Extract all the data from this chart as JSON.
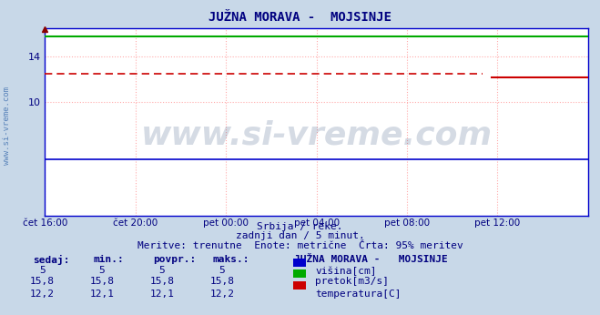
{
  "title": "JUŽNA MORAVA -  MOJSINJE",
  "title_color": "#000080",
  "title_fontsize": 10,
  "plot_bg_color": "#ffffff",
  "fig_bg_color": "#c8d8e8",
  "xmin": 0,
  "xmax": 288,
  "ymin": 0,
  "ymax": 16.5,
  "yticks": [
    10,
    14
  ],
  "xtick_positions": [
    0,
    48,
    96,
    144,
    192,
    240
  ],
  "xtick_labels": [
    "čet 16:00",
    "čet 20:00",
    "pet 00:00",
    "pet 04:00",
    "pet 08:00",
    "pet 12:00"
  ],
  "grid_color": "#ffaaaa",
  "axis_color": "#0000cc",
  "n_points": 289,
  "visina_value": 5.0,
  "pretok_value": 15.8,
  "temp_solid_value": 12.2,
  "temp_dashed_value": 12.5,
  "temp_gap_start": 232,
  "temp_gap_end": 237,
  "visina_color": "#0000cc",
  "pretok_color": "#00aa00",
  "temp_color": "#cc0000",
  "watermark_text": "www.si-vreme.com",
  "watermark_color": "#1a3a6e",
  "watermark_alpha": 0.18,
  "watermark_fontsize": 26,
  "subtitle1": "Srbija / reke.",
  "subtitle2": "zadnji dan / 5 minut.",
  "subtitle3": "Meritve: trenutne  Enote: metrične  Črta: 95% meritev",
  "subtitle_color": "#000080",
  "subtitle_fontsize": 8,
  "table_headers": [
    "sedaj:",
    "min.:",
    "povpr.:",
    "maks.:"
  ],
  "table_col0": [
    "5",
    "15,8",
    "12,2"
  ],
  "table_col1": [
    "5",
    "15,8",
    "12,1"
  ],
  "table_col2": [
    "5",
    "15,8",
    "12,1"
  ],
  "table_col3": [
    "5",
    "15,8",
    "12,2"
  ],
  "legend_title": "JUŽNA MORAVA -   MOJSINJE",
  "legend_labels": [
    "višina[cm]",
    "pretok[m3/s]",
    "temperatura[C]"
  ],
  "legend_colors": [
    "#0000cc",
    "#00aa00",
    "#cc0000"
  ],
  "table_fontsize": 8,
  "sidewater_text": "www.si-vreme.com",
  "sidewater_color": "#3366aa",
  "sidewater_fontsize": 6.5
}
